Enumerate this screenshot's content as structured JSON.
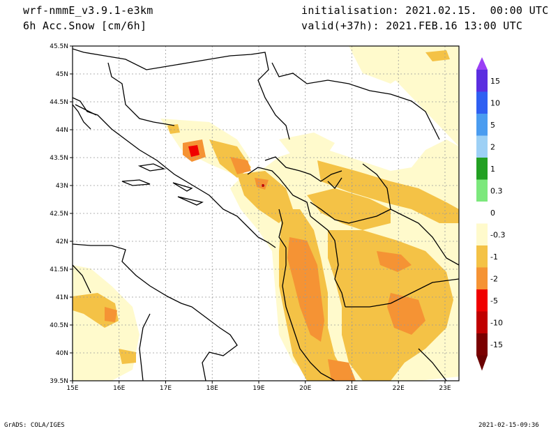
{
  "header": {
    "model": "wrf-nmmE_v3.9.1-e3km",
    "field": "6h Acc.Snow [cm/6h]",
    "init": "initialisation: 2021.02.15.  00:00 UTC",
    "valid": "valid(+37h): 2021.FEB.16 13:00 UTC"
  },
  "map": {
    "lat_labels": [
      "45.5N",
      "45N",
      "44.5N",
      "44N",
      "43.5N",
      "43N",
      "42.5N",
      "42N",
      "41.5N",
      "41N",
      "40.5N",
      "40N",
      "39.5N"
    ],
    "lon_labels": [
      "15E",
      "16E",
      "17E",
      "18E",
      "19E",
      "20E",
      "21E",
      "22E",
      "23E"
    ],
    "lat_range": [
      39.5,
      45.5
    ],
    "lon_range": [
      15,
      23.3
    ]
  },
  "colorbar": {
    "labels": [
      "15",
      "10",
      "5",
      "2",
      "1",
      "0.3",
      "0",
      "-0.3",
      "-1",
      "-2",
      "-5",
      "-10",
      "-15"
    ],
    "colors": [
      "#5a2ee0",
      "#2f5ff2",
      "#4a9cf0",
      "#9dd0f5",
      "#22a022",
      "#7ce87c",
      "#ffffff",
      "#fffacc",
      "#f4c246",
      "#f59334",
      "#f00000",
      "#c00000",
      "#7a0000"
    ],
    "top_arrow_color": "#9a3ff5",
    "bottom_arrow_color": "#6a0000"
  },
  "footer": {
    "left": "GrADS: COLA/IGES",
    "right": "2021-02-15-09:36"
  }
}
